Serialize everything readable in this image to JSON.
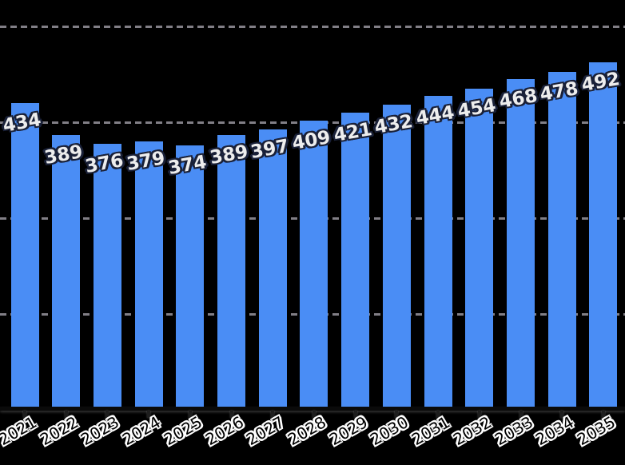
{
  "chart_data": {
    "type": "bar",
    "title": "",
    "xlabel": "",
    "ylabel": "",
    "categories": [
      "2021",
      "2022",
      "2023",
      "2024",
      "2025",
      "2026",
      "2027",
      "2028",
      "2029",
      "2030",
      "2031",
      "2032",
      "2033",
      "2034",
      "2035"
    ],
    "values": [
      434,
      389,
      376,
      379,
      374,
      389,
      397,
      409,
      421,
      432,
      444,
      454,
      468,
      478,
      492
    ],
    "value_labels_shown": true,
    "ylim": [
      0,
      580
    ],
    "grid": "horizontal-dashed",
    "legend": "none",
    "style": "hand-drawn (xkcd-like), x tick labels rotated, y-axis labels cropped out of frame",
    "colors": {
      "background": "#000000",
      "bar": "#4a8df5",
      "gridline": "#98959e",
      "value_label_text": "#ededed",
      "value_label_outline": "#1a2138",
      "x_tick_label_text": "#000000",
      "x_tick_label_outline": "#ffffff"
    }
  }
}
